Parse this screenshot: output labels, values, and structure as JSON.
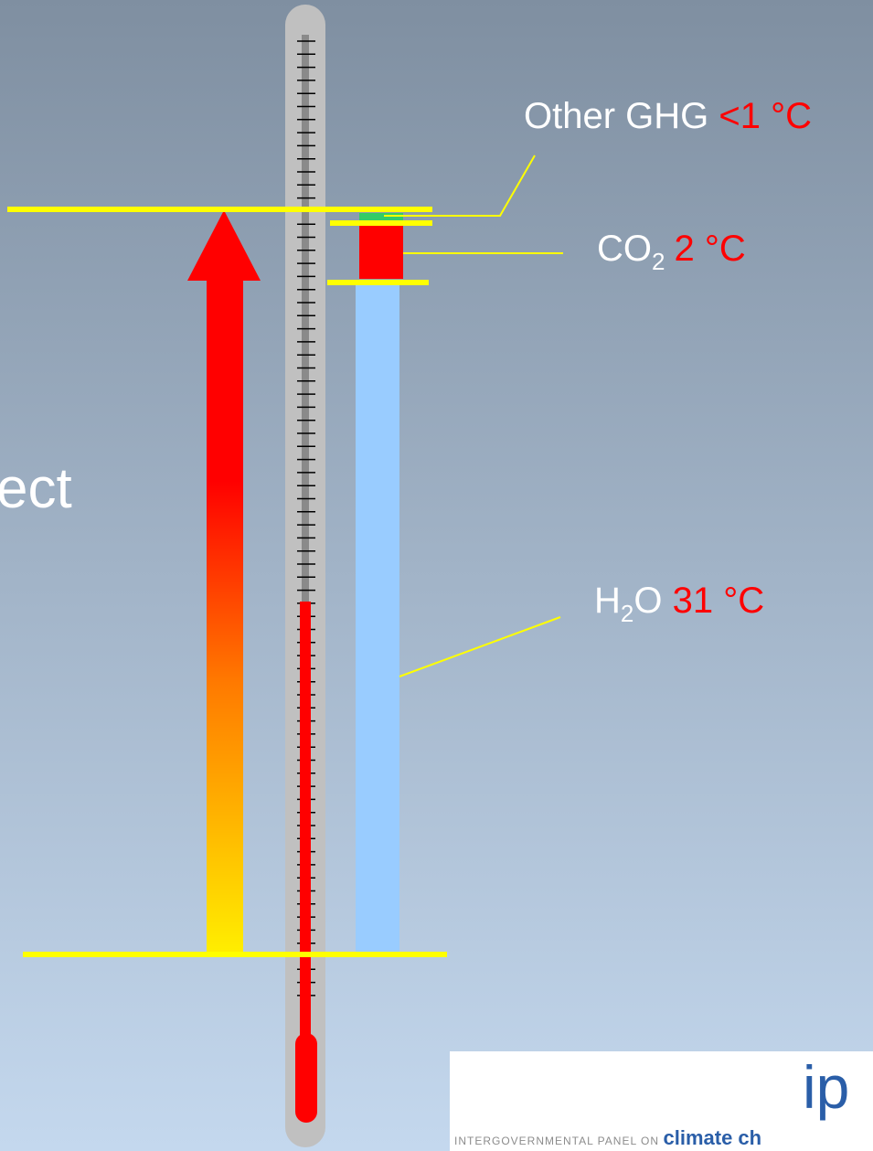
{
  "labels": {
    "other_ghg": {
      "name": "Other GHG",
      "value": "<1 °C"
    },
    "co2": {
      "name": "CO",
      "sub": "2",
      "value": "2 °C"
    },
    "h2o": {
      "name": "H",
      "sub": "2",
      "name_end": "O",
      "value": "31 °C"
    }
  },
  "title_fragment": "ect",
  "logo": {
    "mark": "ip",
    "tagline": "INTERGOVERNMENTAL PANEL ON",
    "tagline_emphasis": "climate ch"
  }
}
